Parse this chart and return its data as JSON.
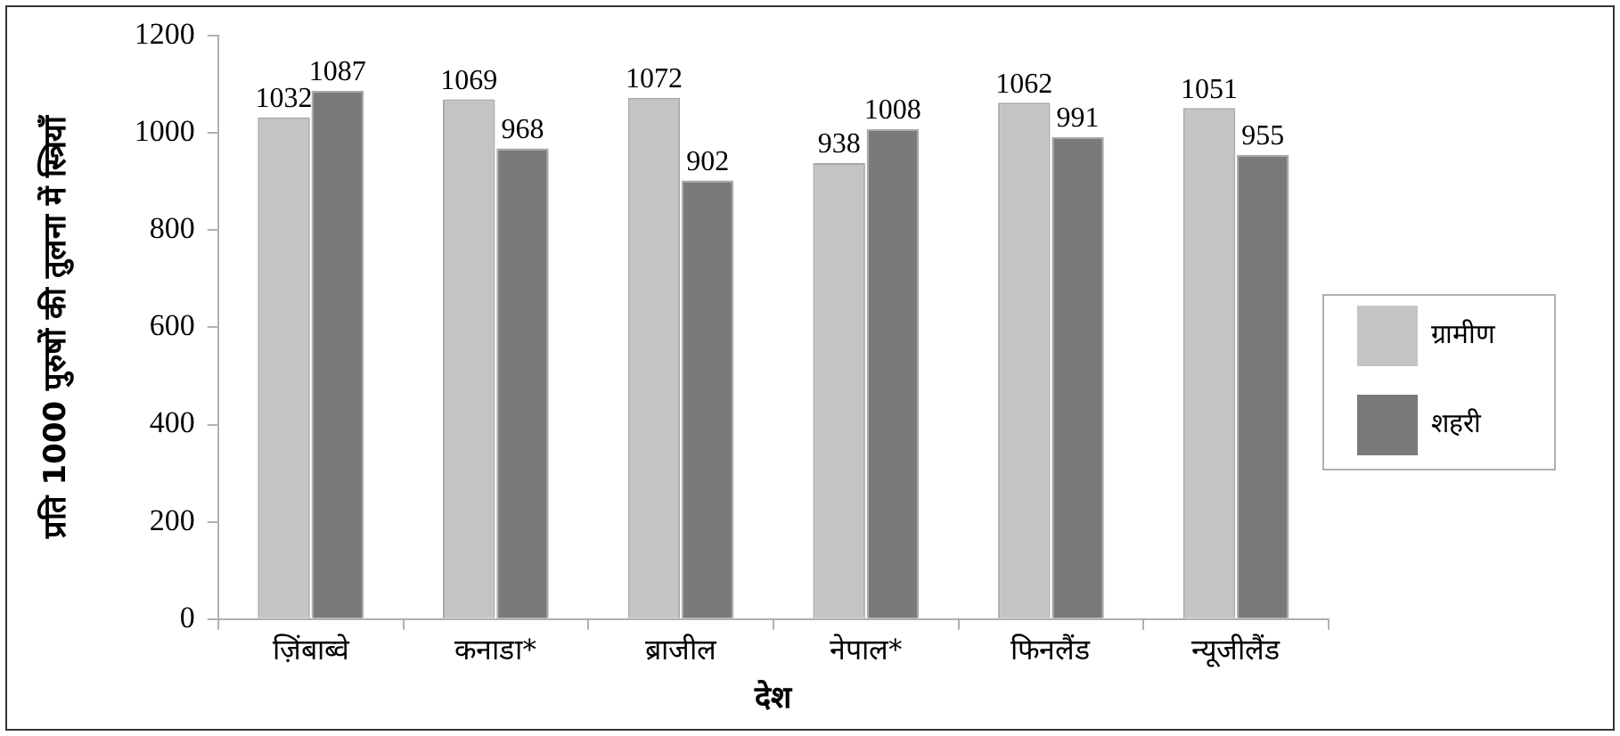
{
  "chart_data": {
    "type": "bar",
    "xlabel": "देश",
    "ylabel": "प्रति 1000 पुरुषों की तुलना में स्त्रियाँ",
    "categories": [
      "ज़िंबाब्वे",
      "कनाडा*",
      "ब्राजील",
      "नेपाल*",
      "फिनलैंड",
      "न्यूजीलैंड"
    ],
    "series": [
      {
        "name": "ग्रामीण",
        "color": "#c4c4c4",
        "values": [
          1032,
          1069,
          1072,
          938,
          1062,
          1051
        ]
      },
      {
        "name": "शहरी",
        "color": "#7a7a7a",
        "values": [
          1087,
          968,
          902,
          1008,
          991,
          955
        ]
      }
    ],
    "ylim": [
      0,
      1200
    ],
    "yticks": [
      0,
      200,
      400,
      600,
      800,
      1000,
      1200
    ],
    "data_labels": true,
    "legend": "right"
  }
}
